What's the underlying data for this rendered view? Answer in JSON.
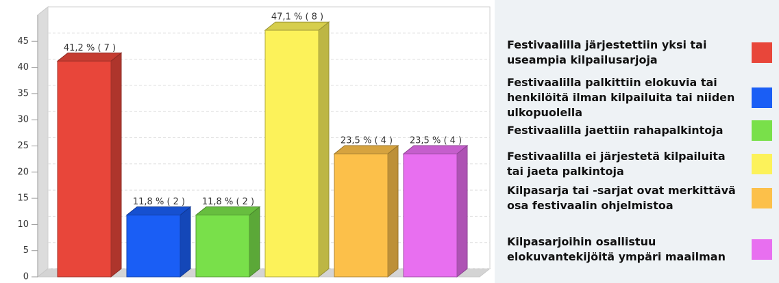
{
  "chart_data": {
    "type": "bar3d",
    "categories": [
      "Festivaalilla järjestettiin yksi tai useampia kilpailusarjoja",
      "Festivaalilla palkittiin elokuvia tai henkilöitä ilman kilpailuita tai niiden ulkopuolella",
      "Festivaalilla jaettiin rahapalkintoja",
      "Festivaalilla ei järjestetä kilpailuita tai jaeta palkintoja",
      "Kilpasarja tai -sarjat ovat merkittävä osa festivaalin ohjelmistoa",
      "Kilpasarjoihin osallistuu elokuvantekijöitä ympäri maailman"
    ],
    "values": [
      41.2,
      11.8,
      11.8,
      47.1,
      23.5,
      23.5
    ],
    "value_labels": [
      "41,2 % ( 7 )",
      "11,8 % ( 2 )",
      "11,8 % ( 2 )",
      "47,1 % ( 8 )",
      "23,5 % ( 4 )",
      "23,5 % ( 4 )"
    ],
    "colors": [
      "#e8463a",
      "#1a5ef5",
      "#79e04a",
      "#fcf25a",
      "#fcc04a",
      "#e86ff0"
    ],
    "ylim": [
      0,
      50
    ],
    "yticks": [
      0,
      5,
      10,
      15,
      20,
      25,
      30,
      35,
      40,
      45
    ],
    "grid": true
  }
}
